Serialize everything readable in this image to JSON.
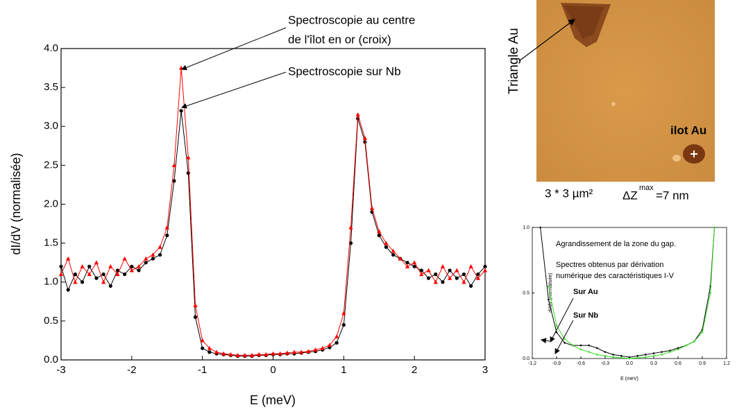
{
  "chart_data": [
    {
      "type": "line",
      "x_label": "E (meV)",
      "y_label": "dI/dV (normalisée)",
      "x": [
        -3.0,
        -2.9,
        -2.8,
        -2.7,
        -2.6,
        -2.5,
        -2.4,
        -2.3,
        -2.2,
        -2.1,
        -2.0,
        -1.9,
        -1.8,
        -1.7,
        -1.6,
        -1.5,
        -1.4,
        -1.3,
        -1.2,
        -1.1,
        -1.0,
        -0.9,
        -0.8,
        -0.7,
        -0.6,
        -0.5,
        -0.4,
        -0.3,
        -0.2,
        -0.1,
        0.0,
        0.1,
        0.2,
        0.3,
        0.4,
        0.5,
        0.6,
        0.7,
        0.8,
        0.9,
        1.0,
        1.1,
        1.2,
        1.3,
        1.4,
        1.5,
        1.6,
        1.7,
        1.8,
        1.9,
        2.0,
        2.1,
        2.2,
        2.3,
        2.4,
        2.5,
        2.6,
        2.7,
        2.8,
        2.9,
        3.0
      ],
      "series": [
        {
          "color": "#000000",
          "marker": "circle",
          "values": [
            1.2,
            0.9,
            1.1,
            1.0,
            1.2,
            1.05,
            1.1,
            0.95,
            1.15,
            1.1,
            1.2,
            1.15,
            1.25,
            1.3,
            1.35,
            1.6,
            2.3,
            3.2,
            2.4,
            0.55,
            0.15,
            0.1,
            0.08,
            0.07,
            0.06,
            0.05,
            0.05,
            0.05,
            0.06,
            0.06,
            0.07,
            0.07,
            0.08,
            0.08,
            0.09,
            0.1,
            0.11,
            0.13,
            0.16,
            0.22,
            0.45,
            1.5,
            3.1,
            2.8,
            1.9,
            1.6,
            1.45,
            1.35,
            1.3,
            1.25,
            1.2,
            1.15,
            1.05,
            1.1,
            1.0,
            1.15,
            1.05,
            1.1,
            0.95,
            1.1,
            1.2
          ]
        },
        {
          "color": "#ff0000",
          "marker": "triangle",
          "values": [
            1.1,
            1.3,
            1.0,
            1.2,
            1.1,
            1.25,
            1.0,
            1.2,
            1.1,
            1.3,
            1.15,
            1.2,
            1.3,
            1.35,
            1.45,
            1.7,
            2.5,
            3.75,
            2.6,
            0.7,
            0.25,
            0.15,
            0.1,
            0.08,
            0.07,
            0.06,
            0.06,
            0.06,
            0.07,
            0.07,
            0.08,
            0.08,
            0.09,
            0.1,
            0.1,
            0.11,
            0.13,
            0.15,
            0.19,
            0.3,
            0.6,
            1.7,
            3.15,
            2.85,
            1.95,
            1.65,
            1.5,
            1.4,
            1.3,
            1.2,
            1.25,
            1.1,
            1.15,
            1.0,
            1.2,
            1.05,
            1.15,
            1.0,
            1.2,
            1.05,
            1.15
          ]
        }
      ],
      "xlim": [
        -3,
        3
      ],
      "xticks": [
        -3,
        -2,
        -1,
        0,
        1,
        2,
        3
      ],
      "ylim": [
        0,
        4
      ],
      "yticks": [
        {
          "value": 0,
          "label": "0.0"
        },
        0.5,
        {
          "value": 1,
          "label": "1.0"
        },
        1.5,
        {
          "value": 2,
          "label": "2.0"
        },
        2.5,
        {
          "value": 3,
          "label": "3.0"
        },
        3.5,
        {
          "value": 4,
          "label": "4.0"
        }
      ],
      "annotations": [
        "Spectroscopie au centre",
        "de l'îlot en or (croix)",
        "Spectroscopie sur Nb"
      ]
    },
    {
      "type": "line",
      "x_label": "E (meV)",
      "y_label": "dI/dV (normalisée)",
      "x": [
        -1.1,
        -1.0,
        -0.9,
        -0.8,
        -0.7,
        -0.6,
        -0.5,
        -0.4,
        -0.3,
        -0.2,
        -0.1,
        0.0,
        0.1,
        0.2,
        0.3,
        0.4,
        0.5,
        0.6,
        0.7,
        0.8,
        0.9,
        1.0,
        1.05
      ],
      "series": [
        {
          "name": "Sur Nb",
          "color": "#000000",
          "marker": "dot",
          "values": [
            1.0,
            0.45,
            0.2,
            0.12,
            0.1,
            0.1,
            0.1,
            0.08,
            0.05,
            0.03,
            0.02,
            0.01,
            0.02,
            0.03,
            0.04,
            0.05,
            0.06,
            0.08,
            0.1,
            0.13,
            0.22,
            0.55,
            1.0
          ]
        },
        {
          "name": "Sur Au",
          "color": "#33dd22",
          "marker": "dot",
          "values": [
            null,
            0.55,
            0.25,
            0.15,
            0.1,
            0.07,
            0.05,
            0.03,
            0.02,
            0.01,
            0.005,
            0.0,
            0.005,
            0.01,
            0.02,
            0.03,
            0.05,
            0.07,
            0.1,
            0.13,
            0.2,
            0.5,
            1.0
          ]
        }
      ],
      "xlim": [
        -1.2,
        1.2
      ],
      "xticks": [
        -1.2,
        -0.9,
        -0.6,
        -0.3,
        {
          "value": 0,
          "label": "0.0"
        },
        0.3,
        0.6,
        0.9,
        1.2
      ],
      "ylim": [
        0,
        1
      ],
      "yticks": [
        {
          "value": 0,
          "label": "0.0"
        },
        0.5,
        {
          "value": 1,
          "label": "1.0"
        }
      ],
      "annotations": [
        "Agrandissement de la zone du gap.",
        "Spectres obtenus par dérivation",
        "numérique des caractéristiques I-V"
      ]
    }
  ],
  "image": {
    "labels": [
      "Triangle Au",
      "ilot Au",
      "3 * 3 µm²",
      "ΔZ",
      "max",
      "=7 nm"
    ]
  }
}
